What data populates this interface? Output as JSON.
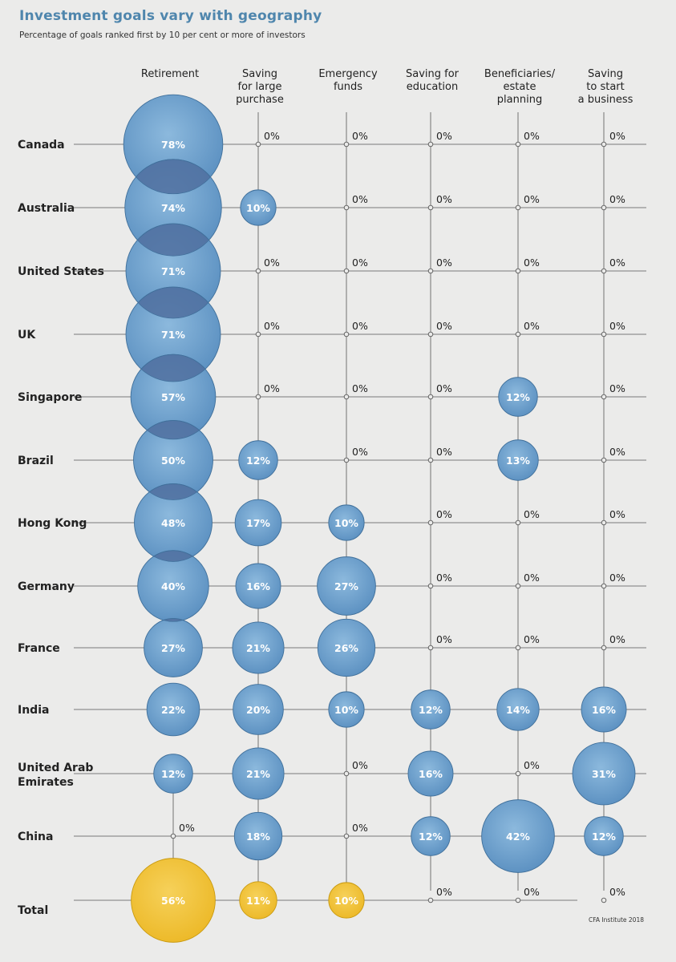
{
  "chart_data": {
    "type": "bubble-grid",
    "title": "Investment goals vary with geography",
    "subtitle": "Percentage of goals ranked first by 10 per cent or more of investors",
    "source": "CFA Institute 2018",
    "columns": [
      [
        "Retirement"
      ],
      [
        "Saving",
        "for large",
        "purchase"
      ],
      [
        "Emergency",
        "funds"
      ],
      [
        "Saving for",
        "education"
      ],
      [
        "Beneficiaries/",
        "estate",
        "planning"
      ],
      [
        "Saving",
        "to start",
        "a business"
      ]
    ],
    "rows": [
      [
        "Canada"
      ],
      [
        "Australia"
      ],
      [
        "United States"
      ],
      [
        "UK"
      ],
      [
        "Singapore"
      ],
      [
        "Brazil"
      ],
      [
        "Hong Kong"
      ],
      [
        "Germany"
      ],
      [
        "France"
      ],
      [
        "India"
      ],
      [
        "United Arab",
        "Emirates"
      ],
      [
        "China"
      ],
      [
        "Total"
      ]
    ],
    "values": [
      [
        78,
        0,
        0,
        0,
        0,
        0
      ],
      [
        74,
        10,
        0,
        0,
        0,
        0
      ],
      [
        71,
        0,
        0,
        0,
        0,
        0
      ],
      [
        71,
        0,
        0,
        0,
        0,
        0
      ],
      [
        57,
        0,
        0,
        0,
        12,
        0
      ],
      [
        50,
        12,
        0,
        0,
        13,
        0
      ],
      [
        48,
        17,
        10,
        0,
        0,
        0
      ],
      [
        40,
        16,
        27,
        0,
        0,
        0
      ],
      [
        27,
        21,
        26,
        0,
        0,
        0
      ],
      [
        22,
        20,
        10,
        12,
        14,
        16
      ],
      [
        12,
        21,
        0,
        16,
        0,
        31
      ],
      [
        0,
        18,
        0,
        12,
        42,
        12
      ],
      [
        56,
        11,
        10,
        0,
        0,
        0
      ]
    ],
    "unit": "%",
    "colors": {
      "bubble": "#6b9fcc",
      "total": "#f2c43a",
      "grid": "#555555",
      "overlap": "#4f6f9f"
    }
  }
}
